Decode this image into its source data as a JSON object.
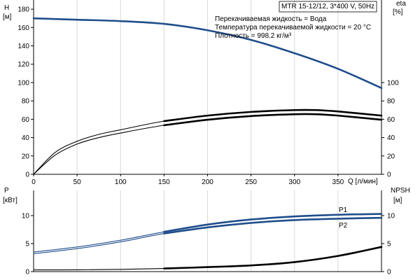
{
  "chart_data": [
    {
      "type": "line",
      "panel": "top",
      "title": "MTR 15-12/12, 3*400 V, 50Hz",
      "annotations": [
        "Перекачиваемая жидкость = Вода",
        "Температура перекачиваемой жидкости = 20 °C",
        "Плотность = 998.2 кг/м³"
      ],
      "xlabel": "Q [л/мин]",
      "ylabel_left_name": "H",
      "ylabel_left_unit": "[м]",
      "ylabel_right_name": "eta",
      "ylabel_right_unit": "[%]",
      "xlim": [
        0,
        400
      ],
      "ylim_left": [
        0,
        190
      ],
      "ylim_right": [
        0,
        190
      ],
      "x_ticks": [
        0,
        50,
        100,
        150,
        200,
        250,
        300,
        350
      ],
      "y_ticks_left": [
        0,
        20,
        40,
        60,
        80,
        100,
        120,
        140,
        160,
        180
      ],
      "y_ticks_right": [
        0,
        20,
        40,
        60,
        80,
        100
      ],
      "grid": "vertical",
      "series": [
        {
          "color": "#1f4e8c",
          "axis": "left",
          "points": [
            [
              0,
              170
            ],
            [
              50,
              168.5
            ],
            [
              100,
              167
            ],
            [
              150,
              164
            ],
            [
              200,
              157
            ],
            [
              250,
              146.5
            ],
            [
              300,
              132
            ],
            [
              350,
              115
            ],
            [
              400,
              94
            ]
          ],
          "bold_from": 0
        },
        {
          "color": "#000000",
          "axis": "right",
          "points": [
            [
              0,
              0
            ],
            [
              25,
              24
            ],
            [
              50,
              36
            ],
            [
              75,
              43.5
            ],
            [
              100,
              48.5
            ],
            [
              150,
              58
            ],
            [
              200,
              64
            ],
            [
              250,
              68
            ],
            [
              300,
              70
            ],
            [
              325,
              70
            ],
            [
              350,
              68.5
            ],
            [
              400,
              64
            ]
          ],
          "bold_from": 150
        },
        {
          "color": "#000000",
          "axis": "right",
          "points": [
            [
              0,
              0
            ],
            [
              25,
              21
            ],
            [
              50,
              33
            ],
            [
              75,
              40
            ],
            [
              100,
              45
            ],
            [
              150,
              53.5
            ],
            [
              200,
              59.5
            ],
            [
              250,
              63.5
            ],
            [
              300,
              65.5
            ],
            [
              325,
              65.5
            ],
            [
              350,
              64
            ],
            [
              400,
              59.5
            ]
          ],
          "bold_from": 150
        }
      ]
    },
    {
      "type": "line",
      "panel": "bottom",
      "xlim": [
        0,
        400
      ],
      "ylabel_left_name": "P",
      "ylabel_left_unit": "[кВт]",
      "ylabel_right_name": "NPSH",
      "ylabel_right_unit": "[м]",
      "ylim_left": [
        0,
        14.5
      ],
      "ylim_right": [
        0,
        14.5
      ],
      "y_ticks_left": [
        0,
        5,
        10
      ],
      "y_ticks_right": [
        0,
        5,
        10
      ],
      "grid": "vertical",
      "series": [
        {
          "name": "P1",
          "color": "#1f4e8c",
          "axis": "left",
          "points": [
            [
              0,
              3.5
            ],
            [
              50,
              4.4
            ],
            [
              100,
              5.6
            ],
            [
              150,
              7.1
            ],
            [
              200,
              8.4
            ],
            [
              250,
              9.3
            ],
            [
              300,
              9.85
            ],
            [
              350,
              10.15
            ],
            [
              400,
              10.3
            ]
          ],
          "bold_from": 150
        },
        {
          "name": "P2",
          "color": "#1f4e8c",
          "axis": "left",
          "points": [
            [
              0,
              3.2
            ],
            [
              50,
              4.1
            ],
            [
              100,
              5.3
            ],
            [
              150,
              6.8
            ],
            [
              200,
              7.9
            ],
            [
              250,
              8.7
            ],
            [
              300,
              9.2
            ],
            [
              350,
              9.45
            ],
            [
              400,
              9.6
            ]
          ],
          "bold_from": 150
        },
        {
          "color": "#000000",
          "axis": "right",
          "points": [
            [
              0,
              0.3
            ],
            [
              50,
              0.32
            ],
            [
              100,
              0.4
            ],
            [
              150,
              0.55
            ],
            [
              200,
              0.8
            ],
            [
              250,
              1.1
            ],
            [
              300,
              1.7
            ],
            [
              350,
              2.8
            ],
            [
              400,
              4.4
            ]
          ],
          "bold_from": 150
        }
      ]
    }
  ]
}
